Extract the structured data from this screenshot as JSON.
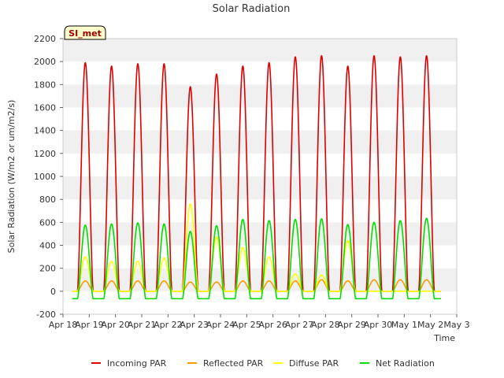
{
  "chart_data": {
    "type": "line",
    "title": "Solar Radiation",
    "xlabel": "Time",
    "ylabel": "Solar Radiation (W/m2 or um/m2/s)",
    "badge": "SI_met",
    "xlim": [
      0,
      15
    ],
    "ylim": [
      -200,
      2200
    ],
    "x_tick_labels": [
      "Apr 18",
      "Apr 19",
      "Apr 20",
      "Apr 21",
      "Apr 22",
      "Apr 23",
      "Apr 24",
      "Apr 25",
      "Apr 26",
      "Apr 27",
      "Apr 28",
      "Apr 29",
      "Apr 30",
      "May 1",
      "May 2",
      "May 3"
    ],
    "y_ticks": [
      -200,
      0,
      200,
      400,
      600,
      800,
      1000,
      1200,
      1400,
      1600,
      1800,
      2000,
      2200
    ],
    "day_centers": [
      0.85,
      1.85,
      2.85,
      3.85,
      4.85,
      5.85,
      6.85,
      7.85,
      8.85,
      9.85,
      10.85,
      11.85,
      12.85,
      13.85
    ],
    "series": [
      {
        "name": "Incoming PAR",
        "color": "#dd0000",
        "day_peaks": [
          1990,
          1960,
          1980,
          1980,
          1780,
          1890,
          1960,
          1990,
          2040,
          2050,
          1960,
          2050,
          2040,
          2050
        ],
        "night_value": 0
      },
      {
        "name": "Reflected PAR",
        "color": "#ff9900",
        "day_peaks": [
          90,
          90,
          90,
          90,
          80,
          80,
          90,
          90,
          90,
          100,
          90,
          100,
          100,
          100
        ],
        "night_value": 0
      },
      {
        "name": "Diffuse PAR",
        "color": "#ffff00",
        "day_peaks": [
          300,
          260,
          260,
          290,
          760,
          470,
          380,
          300,
          150,
          140,
          440,
          0,
          0,
          0
        ],
        "night_value": 0
      },
      {
        "name": "Net Radiation",
        "color": "#00dd00",
        "day_peaks": [
          575,
          585,
          595,
          585,
          520,
          570,
          625,
          615,
          625,
          630,
          580,
          600,
          615,
          635
        ],
        "night_value": -65
      }
    ]
  }
}
